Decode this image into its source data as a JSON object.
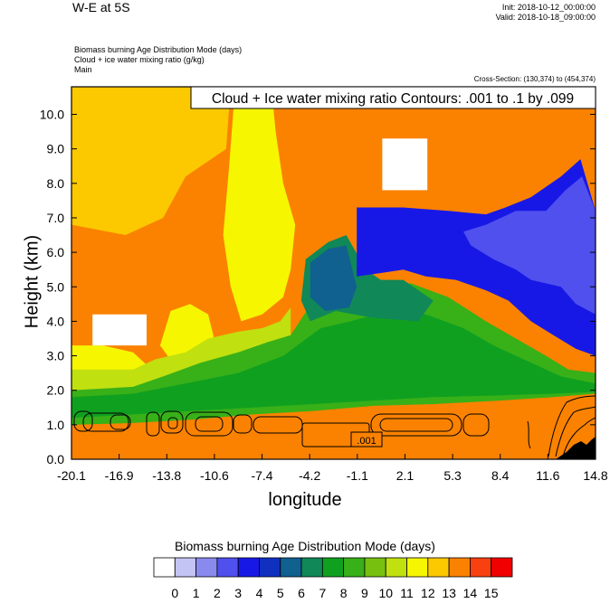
{
  "header": {
    "title": "W-E at 5S",
    "init": "Init: 2018-10-12_00:00:00",
    "valid": "Valid: 2018-10-18_09:00:00",
    "fields": [
      "Biomass burning Age Distribution Mode    (days)",
      "Cloud + ice water mixing ratio    (g/kg)",
      "Main"
    ],
    "cross_section": "Cross-Section: (130,374) to (454,374)"
  },
  "chart_data": {
    "type": "heatmap",
    "title": "W-E at 5S",
    "xlabel": "longitude",
    "ylabel": "Height (km)",
    "x_ticks": [
      "-20.1",
      "-16.9",
      "-13.8",
      "-10.6",
      "-7.4",
      "-4.2",
      "-1.1",
      "2.1",
      "5.3",
      "8.4",
      "11.6",
      "14.8"
    ],
    "y_ticks": [
      "0.0",
      "1.0",
      "2.0",
      "3.0",
      "4.0",
      "5.0",
      "6.0",
      "7.0",
      "8.0",
      "9.0",
      "10.0"
    ],
    "xlim": [
      -20.1,
      14.8
    ],
    "ylim": [
      0,
      10.8
    ],
    "contour_label": "Cloud + Ice water mixing ratio Contours: .001 to .1 by .099",
    "contour_value_label": ".001",
    "colorbar": {
      "title": "Biomass burning Age Distribution Mode  (days)",
      "labels": [
        "0",
        "1",
        "2",
        "3",
        "4",
        "5",
        "6",
        "7",
        "8",
        "9",
        "10",
        "11",
        "12",
        "13",
        "14",
        "15"
      ],
      "colors": [
        "#ffffff",
        "#c4c4f4",
        "#8a8aee",
        "#5050ee",
        "#1818e6",
        "#1030c0",
        "#106090",
        "#108858",
        "#10a020",
        "#38b018",
        "#78c010",
        "#c0e010",
        "#f6f600",
        "#fcc800",
        "#fa8200",
        "#f84010",
        "#f00000"
      ]
    },
    "regions": [
      {
        "value": 13,
        "color": "#fcc800",
        "polygon": [
          [
            -20.1,
            10.8
          ],
          [
            -9.5,
            10.8
          ],
          [
            -9.8,
            9.0
          ],
          [
            -12.5,
            8.2
          ],
          [
            -14.0,
            7.0
          ],
          [
            -16.5,
            6.5
          ],
          [
            -20.1,
            6.8
          ]
        ]
      },
      {
        "value": 12,
        "color": "#f6f600",
        "polygon": [
          [
            -9.2,
            10.8
          ],
          [
            -6.8,
            10.8
          ],
          [
            -6.5,
            9.5
          ],
          [
            -6.0,
            8.0
          ],
          [
            -5.2,
            6.8
          ],
          [
            -5.5,
            5.5
          ],
          [
            -6.0,
            4.7
          ],
          [
            -7.4,
            4.2
          ],
          [
            -8.8,
            4.0
          ],
          [
            -9.5,
            5.0
          ],
          [
            -10.0,
            6.5
          ],
          [
            -9.6,
            8.5
          ]
        ]
      },
      {
        "value": 12,
        "color": "#f6f600",
        "polygon": [
          [
            -13.5,
            4.3
          ],
          [
            -12.2,
            4.5
          ],
          [
            -11.0,
            4.2
          ],
          [
            -10.6,
            3.5
          ],
          [
            -11.6,
            2.8
          ],
          [
            -13.2,
            2.7
          ],
          [
            -14.2,
            3.3
          ]
        ]
      },
      {
        "value": 12,
        "color": "#f6f600",
        "polygon": [
          [
            -20.1,
            3.3
          ],
          [
            -18.0,
            3.3
          ],
          [
            -16.0,
            3.1
          ],
          [
            -15.0,
            2.7
          ],
          [
            -16.0,
            2.5
          ],
          [
            -20.1,
            2.5
          ]
        ]
      },
      {
        "value": 11,
        "color": "#c0e010",
        "polygon": [
          [
            -20.1,
            2.6
          ],
          [
            -16.0,
            2.6
          ],
          [
            -14.5,
            2.9
          ],
          [
            -12.5,
            3.1
          ],
          [
            -11.0,
            3.5
          ],
          [
            -9.0,
            3.7
          ],
          [
            -7.4,
            3.8
          ],
          [
            -6.2,
            4.0
          ],
          [
            -5.5,
            4.4
          ],
          [
            -5.5,
            3.4
          ],
          [
            -7.5,
            3.0
          ],
          [
            -11.0,
            2.4
          ],
          [
            -14.0,
            2.0
          ],
          [
            -20.1,
            1.9
          ]
        ]
      },
      {
        "value": 9,
        "color": "#38b018",
        "polygon": [
          [
            -20.1,
            2.0
          ],
          [
            -16.0,
            2.1
          ],
          [
            -14.0,
            2.4
          ],
          [
            -11.5,
            2.8
          ],
          [
            -9.0,
            3.1
          ],
          [
            -7.0,
            3.4
          ],
          [
            -5.5,
            3.6
          ],
          [
            -4.0,
            4.6
          ],
          [
            -2.5,
            4.9
          ],
          [
            -1.0,
            4.8
          ],
          [
            0.5,
            5.0
          ],
          [
            2.5,
            5.1
          ],
          [
            5.0,
            4.7
          ],
          [
            7.5,
            4.0
          ],
          [
            9.5,
            3.5
          ],
          [
            11.5,
            3.0
          ],
          [
            13.0,
            2.6
          ],
          [
            14.8,
            2.5
          ],
          [
            14.8,
            1.9
          ],
          [
            12.0,
            1.8
          ],
          [
            8.4,
            1.7
          ],
          [
            4.0,
            1.6
          ],
          [
            0.0,
            1.55
          ],
          [
            -4.0,
            1.4
          ],
          [
            -8.0,
            1.3
          ],
          [
            -12.0,
            1.15
          ],
          [
            -16.0,
            1.05
          ],
          [
            -20.1,
            1.0
          ]
        ]
      },
      {
        "value": 8,
        "color": "#10a020",
        "polygon": [
          [
            -20.1,
            1.2
          ],
          [
            -16.0,
            1.3
          ],
          [
            -12.0,
            1.4
          ],
          [
            -8.0,
            1.5
          ],
          [
            -4.0,
            1.6
          ],
          [
            0.0,
            1.7
          ],
          [
            4.0,
            1.8
          ],
          [
            8.4,
            1.85
          ],
          [
            12.0,
            1.9
          ],
          [
            14.8,
            1.95
          ],
          [
            14.8,
            2.2
          ],
          [
            12.5,
            2.4
          ],
          [
            10.0,
            2.9
          ],
          [
            8.0,
            3.3
          ],
          [
            6.0,
            3.8
          ],
          [
            3.5,
            4.2
          ],
          [
            1.0,
            4.3
          ],
          [
            -1.5,
            4.0
          ],
          [
            -3.5,
            3.8
          ],
          [
            -6.0,
            3.0
          ],
          [
            -9.0,
            2.5
          ],
          [
            -12.5,
            2.2
          ],
          [
            -16.0,
            1.9
          ],
          [
            -20.1,
            1.8
          ]
        ]
      },
      {
        "value": 7,
        "color": "#108858",
        "polygon": [
          [
            -4.5,
            5.8
          ],
          [
            -3.0,
            6.3
          ],
          [
            -1.8,
            6.5
          ],
          [
            -0.5,
            5.5
          ],
          [
            0.5,
            5.2
          ],
          [
            2.0,
            5.2
          ],
          [
            4.0,
            4.6
          ],
          [
            3.0,
            4.0
          ],
          [
            0.0,
            4.1
          ],
          [
            -2.5,
            4.3
          ],
          [
            -4.2,
            4.0
          ],
          [
            -4.8,
            4.6
          ]
        ]
      },
      {
        "value": 6,
        "color": "#106090",
        "polygon": [
          [
            -4.2,
            5.7
          ],
          [
            -3.0,
            6.1
          ],
          [
            -1.8,
            6.2
          ],
          [
            -1.1,
            5.0
          ],
          [
            -1.6,
            4.4
          ],
          [
            -3.2,
            4.3
          ],
          [
            -4.2,
            4.7
          ]
        ]
      },
      {
        "value": 4,
        "color": "#1818e6",
        "polygon": [
          [
            -1.1,
            7.3
          ],
          [
            2.0,
            7.3
          ],
          [
            5.0,
            7.2
          ],
          [
            7.5,
            7.1
          ],
          [
            8.8,
            7.3
          ],
          [
            10.5,
            7.6
          ],
          [
            12.5,
            8.2
          ],
          [
            13.8,
            8.7
          ],
          [
            14.8,
            7.2
          ],
          [
            14.8,
            3.0
          ],
          [
            13.5,
            3.2
          ],
          [
            12.0,
            3.6
          ],
          [
            10.5,
            4.0
          ],
          [
            9.0,
            4.6
          ],
          [
            7.5,
            4.9
          ],
          [
            5.5,
            5.2
          ],
          [
            3.5,
            5.3
          ],
          [
            2.0,
            5.5
          ],
          [
            0.5,
            5.4
          ],
          [
            -1.1,
            5.3
          ]
        ]
      },
      {
        "value": 3,
        "color": "#5050ee",
        "polygon": [
          [
            6.0,
            6.6
          ],
          [
            7.5,
            6.8
          ],
          [
            9.5,
            7.2
          ],
          [
            11.5,
            7.2
          ],
          [
            12.8,
            7.8
          ],
          [
            13.9,
            8.2
          ],
          [
            14.8,
            7.2
          ],
          [
            14.8,
            4.2
          ],
          [
            13.5,
            4.5
          ],
          [
            12.5,
            5.0
          ],
          [
            10.5,
            5.2
          ],
          [
            9.5,
            5.5
          ],
          [
            8.0,
            5.8
          ],
          [
            6.5,
            6.2
          ]
        ]
      },
      {
        "value": 0,
        "color": "#ffffff",
        "polygon": [
          [
            -18.7,
            4.2
          ],
          [
            -15.1,
            4.2
          ],
          [
            -15.1,
            3.3
          ],
          [
            -18.7,
            3.3
          ]
        ]
      },
      {
        "value": 0,
        "color": "#ffffff",
        "polygon": [
          [
            0.6,
            9.3
          ],
          [
            3.6,
            9.3
          ],
          [
            3.6,
            7.8
          ],
          [
            0.6,
            7.8
          ]
        ]
      }
    ]
  }
}
